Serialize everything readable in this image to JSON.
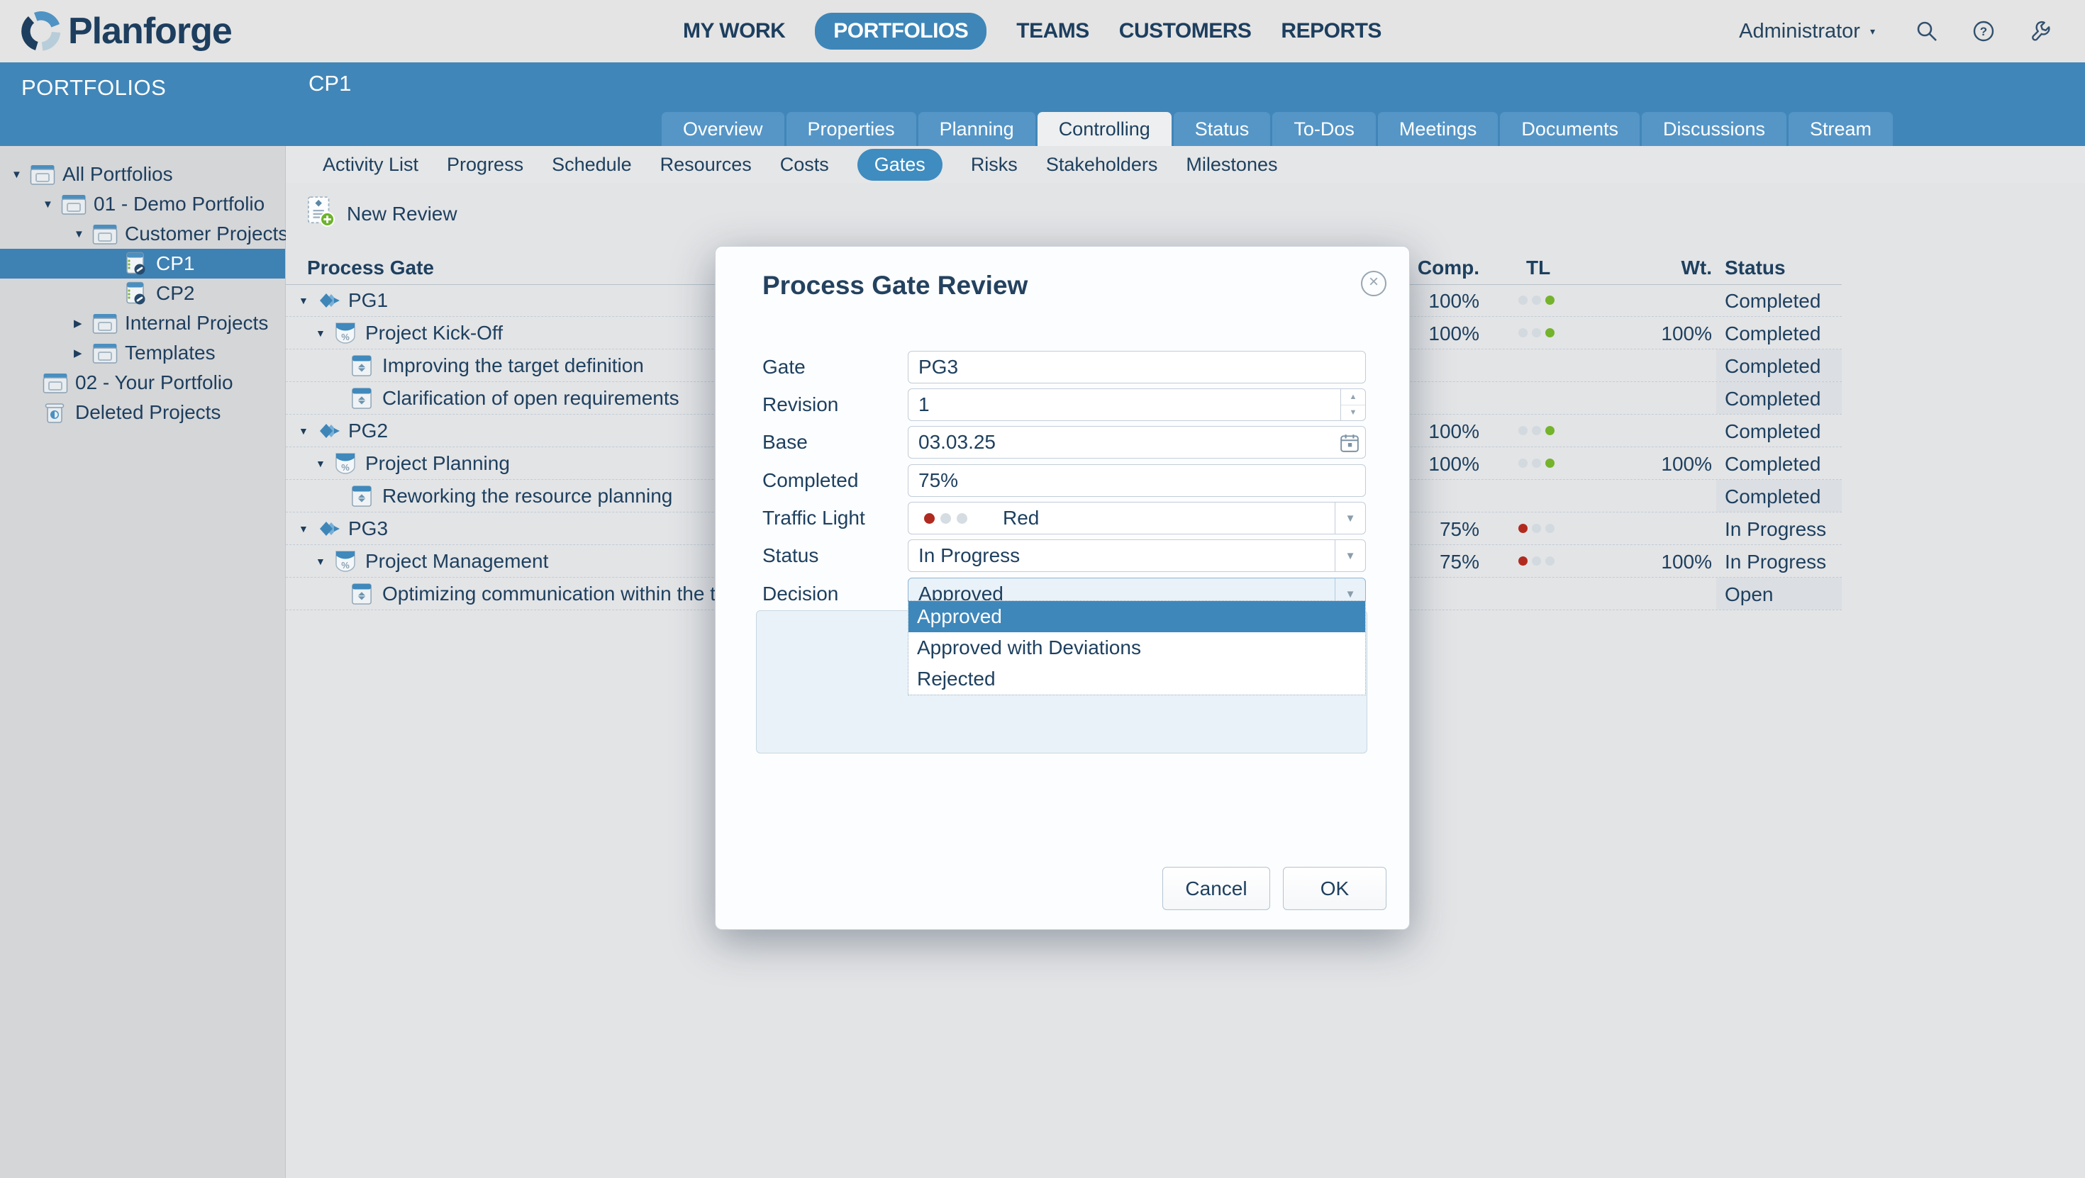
{
  "topbar": {
    "brand": "Planforge",
    "items": [
      "MY WORK",
      "PORTFOLIOS",
      "TEAMS",
      "CUSTOMERS",
      "REPORTS"
    ],
    "active_item": "PORTFOLIOS",
    "user_menu": "Administrator"
  },
  "sidebar": {
    "title": "PORTFOLIOS",
    "tree": [
      {
        "label": "All Portfolios",
        "level": 0,
        "icon": "folder",
        "caret": "expanded"
      },
      {
        "label": "01 - Demo Portfolio",
        "level": 1,
        "icon": "folder",
        "caret": "expanded"
      },
      {
        "label": "Customer Projects",
        "level": 2,
        "icon": "folder",
        "caret": "expanded"
      },
      {
        "label": "CP1",
        "level": 3,
        "icon": "project",
        "caret": "spacer",
        "selected": true
      },
      {
        "label": "CP2",
        "level": 3,
        "icon": "project",
        "caret": "spacer"
      },
      {
        "label": "Internal Projects",
        "level": 2,
        "icon": "folder",
        "caret": "collapsed"
      },
      {
        "label": "Templates",
        "level": 2,
        "icon": "folder",
        "caret": "collapsed"
      },
      {
        "label": "02 - Your Portfolio",
        "level": 1,
        "icon": "folder",
        "caret": "none"
      },
      {
        "label": "Deleted Projects",
        "level": 1,
        "icon": "trash",
        "caret": "none"
      }
    ]
  },
  "header": {
    "title": "CP1",
    "tabs": [
      "Overview",
      "Properties",
      "Planning",
      "Controlling",
      "Status",
      "To-Dos",
      "Meetings",
      "Documents",
      "Discussions",
      "Stream"
    ],
    "active_tab": "Controlling",
    "subtabs": [
      "Activity List",
      "Progress",
      "Schedule",
      "Resources",
      "Costs",
      "Gates",
      "Risks",
      "Stakeholders",
      "Milestones"
    ],
    "active_subtab": "Gates"
  },
  "toolbar": {
    "new_review_label": "New Review"
  },
  "table": {
    "columns": {
      "process_gate": "Process Gate",
      "comp": "Comp.",
      "tl": "TL",
      "wt": "Wt.",
      "status": "Status"
    },
    "rows": [
      {
        "label": "PG1",
        "level": 0,
        "icon": "gate",
        "caret": true,
        "comp": "100%",
        "tl": "green",
        "wt": "",
        "status": "Completed",
        "boxed": false
      },
      {
        "label": "Project Kick-Off",
        "level": 1,
        "icon": "phase",
        "caret": true,
        "comp": "100%",
        "tl": "green",
        "wt": "100%",
        "status": "Completed",
        "boxed": false
      },
      {
        "label": "Improving the target definition",
        "level": 2,
        "icon": "review",
        "caret": false,
        "comp": "",
        "tl": "",
        "wt": "",
        "status": "Completed",
        "boxed": true
      },
      {
        "label": "Clarification of open requirements",
        "level": 2,
        "icon": "review",
        "caret": false,
        "comp": "",
        "tl": "",
        "wt": "",
        "status": "Completed",
        "boxed": true
      },
      {
        "label": "PG2",
        "level": 0,
        "icon": "gate",
        "caret": true,
        "comp": "100%",
        "tl": "green",
        "wt": "",
        "status": "Completed",
        "boxed": false
      },
      {
        "label": "Project Planning",
        "level": 1,
        "icon": "phase",
        "caret": true,
        "comp": "100%",
        "tl": "green",
        "wt": "100%",
        "status": "Completed",
        "boxed": false
      },
      {
        "label": "Reworking the resource planning",
        "level": 2,
        "icon": "review",
        "caret": false,
        "comp": "",
        "tl": "",
        "wt": "",
        "status": "Completed",
        "boxed": true
      },
      {
        "label": "PG3",
        "level": 0,
        "icon": "gate",
        "caret": true,
        "comp": "75%",
        "tl": "red",
        "wt": "",
        "status": "In Progress",
        "boxed": false
      },
      {
        "label": "Project Management",
        "level": 1,
        "icon": "phase",
        "caret": true,
        "comp": "75%",
        "tl": "red",
        "wt": "100%",
        "status": "In Progress",
        "boxed": false
      },
      {
        "label": "Optimizing communication within the team",
        "level": 2,
        "icon": "review",
        "caret": false,
        "comp": "",
        "tl": "",
        "wt": "",
        "status": "Open",
        "boxed": true
      }
    ]
  },
  "dialog": {
    "title": "Process Gate Review",
    "fields": {
      "gate": {
        "label": "Gate",
        "value": "PG3"
      },
      "revision": {
        "label": "Revision",
        "value": "1"
      },
      "base": {
        "label": "Base",
        "value": "03.03.25"
      },
      "completed": {
        "label": "Completed",
        "value": "75%"
      },
      "traffic_light": {
        "label": "Traffic Light",
        "value": "Red",
        "color": "red"
      },
      "status": {
        "label": "Status",
        "value": "In Progress"
      },
      "decision": {
        "label": "Decision",
        "value": "Approved",
        "options": [
          "Approved",
          "Approved with Deviations",
          "Rejected"
        ],
        "selected_option": "Approved"
      }
    },
    "buttons": {
      "cancel": "Cancel",
      "ok": "OK"
    }
  },
  "colors": {
    "header_blue": "#4186b8",
    "accent_blue": "#3e86b8",
    "selected_row_blue": "#3e81b3",
    "navy_text": "#1e405f",
    "green_dot": "#74b32c",
    "red_dot": "#b02a20",
    "content_bg": "#e3e4e6"
  }
}
